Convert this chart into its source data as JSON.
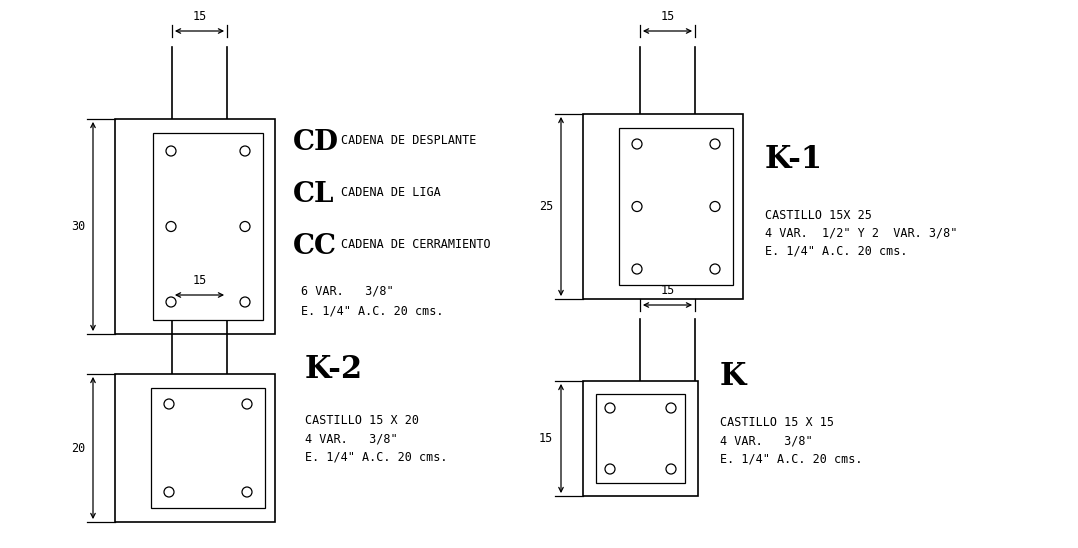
{
  "bg_color": "#ffffff",
  "line_color": "#000000",
  "sections": {
    "CDCLCC": {
      "label": [
        "CD",
        "CL",
        "CC"
      ],
      "desc": [
        "CADENA DE DESPLANTE",
        "CADENA DE LIGA",
        "CADENA DE CERRAMIENTO"
      ],
      "spec": [
        "6 VAR.   3/8\"",
        "E. 1/4\" A.C. 20 cms."
      ],
      "dim_w": "15",
      "dim_h": "30",
      "n_rebars_mid": true,
      "rebars": 6
    },
    "K1": {
      "title": "K-1",
      "spec": [
        "CASTILLO 15X 25",
        "4 VAR.  1/2\" Y 2  VAR. 3/8\"",
        "E. 1/4\" A.C. 20 cms."
      ],
      "dim_w": "15",
      "dim_h": "25",
      "rebars": 6
    },
    "K2": {
      "title": "K-2",
      "spec": [
        "CASTILLO 15 X 20",
        "4 VAR.   3/8\"",
        "E. 1/4\" A.C. 20 cms."
      ],
      "dim_w": "15",
      "dim_h": "20",
      "rebars": 4
    },
    "K": {
      "title": "K",
      "spec": [
        "CASTILLO 15 X 15",
        "4 VAR.   3/8\"",
        "E. 1/4\" A.C. 20 cms."
      ],
      "dim_w": "15",
      "dim_h": "15",
      "rebars": 4
    }
  }
}
